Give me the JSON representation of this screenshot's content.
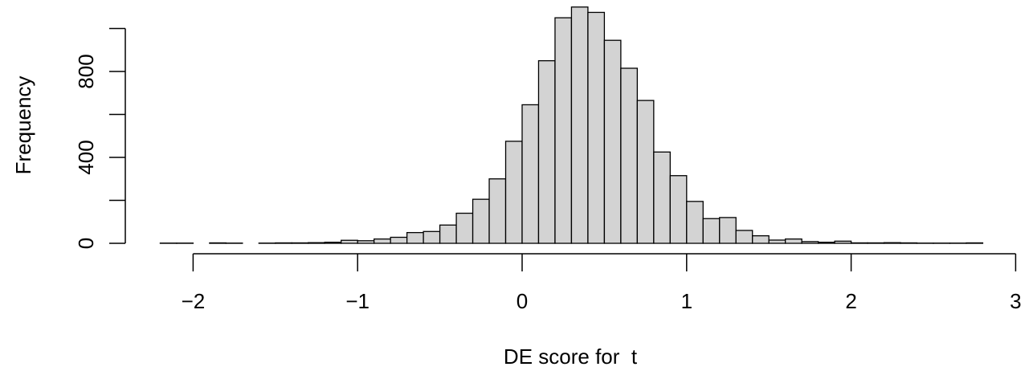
{
  "chart_data": {
    "type": "histogram",
    "title": "",
    "xlabel": "DE score for  t",
    "ylabel": "Frequency",
    "xlim": [
      -2.2,
      2.8
    ],
    "ylim": [
      0,
      1120
    ],
    "x_ticks": [
      -2,
      -1,
      0,
      1,
      2,
      3
    ],
    "x_tick_labels": [
      "−2",
      "−1",
      "0",
      "1",
      "2",
      "3"
    ],
    "y_ticks": [
      0,
      400,
      800
    ],
    "y_tick_labels": [
      "0",
      "400",
      "800"
    ],
    "y_extra_tick_values": [
      200,
      600,
      1000
    ],
    "bin_width": 0.1,
    "bin_start": -2.2,
    "counts": [
      1,
      1,
      0,
      2,
      1,
      0,
      1,
      2,
      2,
      3,
      5,
      14,
      12,
      20,
      28,
      50,
      55,
      85,
      140,
      205,
      300,
      475,
      645,
      850,
      1050,
      1100,
      1075,
      945,
      815,
      665,
      425,
      315,
      195,
      115,
      120,
      60,
      35,
      15,
      20,
      8,
      5,
      10,
      2,
      2,
      3,
      2,
      1,
      1,
      1,
      2
    ],
    "bar_fill": "#d3d3d3",
    "bar_stroke": "#000000",
    "grid": false,
    "legend": "none"
  }
}
